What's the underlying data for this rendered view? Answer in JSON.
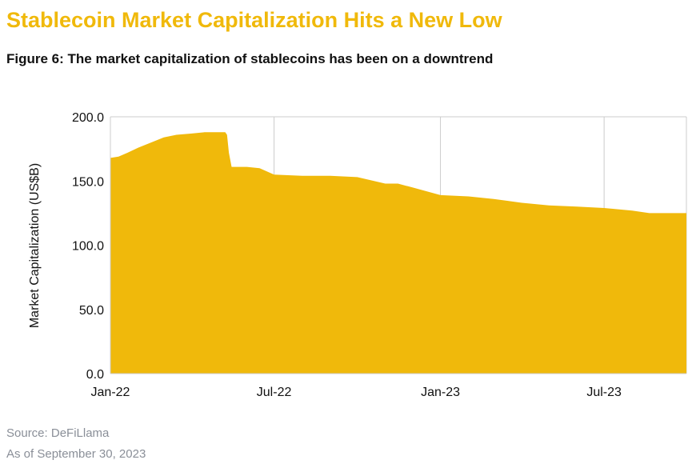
{
  "header": {
    "title": "Stablecoin Market Capitalization Hits a New Low",
    "subtitle": "Figure 6: The market capitalization of stablecoins has been on a downtrend"
  },
  "footer": {
    "source": "Source: DeFiLlama",
    "as_of": "As of September 30, 2023"
  },
  "colors": {
    "title": "#F0B90B",
    "area": "#F0B90B",
    "grid": "#cccccc"
  },
  "chart_data": {
    "type": "area",
    "title": "",
    "xlabel": "",
    "ylabel": "Market Capitalization (US$B)",
    "ylim": [
      0,
      200
    ],
    "xlim": [
      "2022-01-01",
      "2023-09-30"
    ],
    "grid": true,
    "legend": "none",
    "y_ticks": [
      "0.0",
      "50.0",
      "100.0",
      "150.0",
      "200.0"
    ],
    "x_ticks": [
      {
        "label": "Jan-22",
        "date": "2022-01-01"
      },
      {
        "label": "Jul-22",
        "date": "2022-07-01"
      },
      {
        "label": "Jan-23",
        "date": "2023-01-01"
      },
      {
        "label": "Jul-23",
        "date": "2023-07-01"
      }
    ],
    "series": [
      {
        "x": [
          "2022-01-01",
          "2022-01-10",
          "2022-01-20",
          "2022-02-01",
          "2022-02-15",
          "2022-03-01",
          "2022-03-15",
          "2022-04-01",
          "2022-04-15",
          "2022-05-01",
          "2022-05-08",
          "2022-05-10",
          "2022-05-12",
          "2022-05-15",
          "2022-06-01",
          "2022-06-15",
          "2022-07-01",
          "2022-08-01",
          "2022-09-01",
          "2022-10-01",
          "2022-11-01",
          "2022-11-15",
          "2022-12-01",
          "2023-01-01",
          "2023-02-01",
          "2023-03-01",
          "2023-04-01",
          "2023-05-01",
          "2023-06-01",
          "2023-07-01",
          "2023-08-01",
          "2023-08-20",
          "2023-09-01",
          "2023-09-30"
        ],
        "y": [
          168,
          169,
          172,
          176,
          180,
          184,
          186,
          187,
          188,
          188,
          188,
          186,
          172,
          161,
          161,
          160,
          155,
          154,
          154,
          153,
          148,
          148,
          145,
          139,
          138,
          136,
          133,
          131,
          130,
          129,
          127,
          125,
          125,
          125
        ]
      }
    ]
  }
}
